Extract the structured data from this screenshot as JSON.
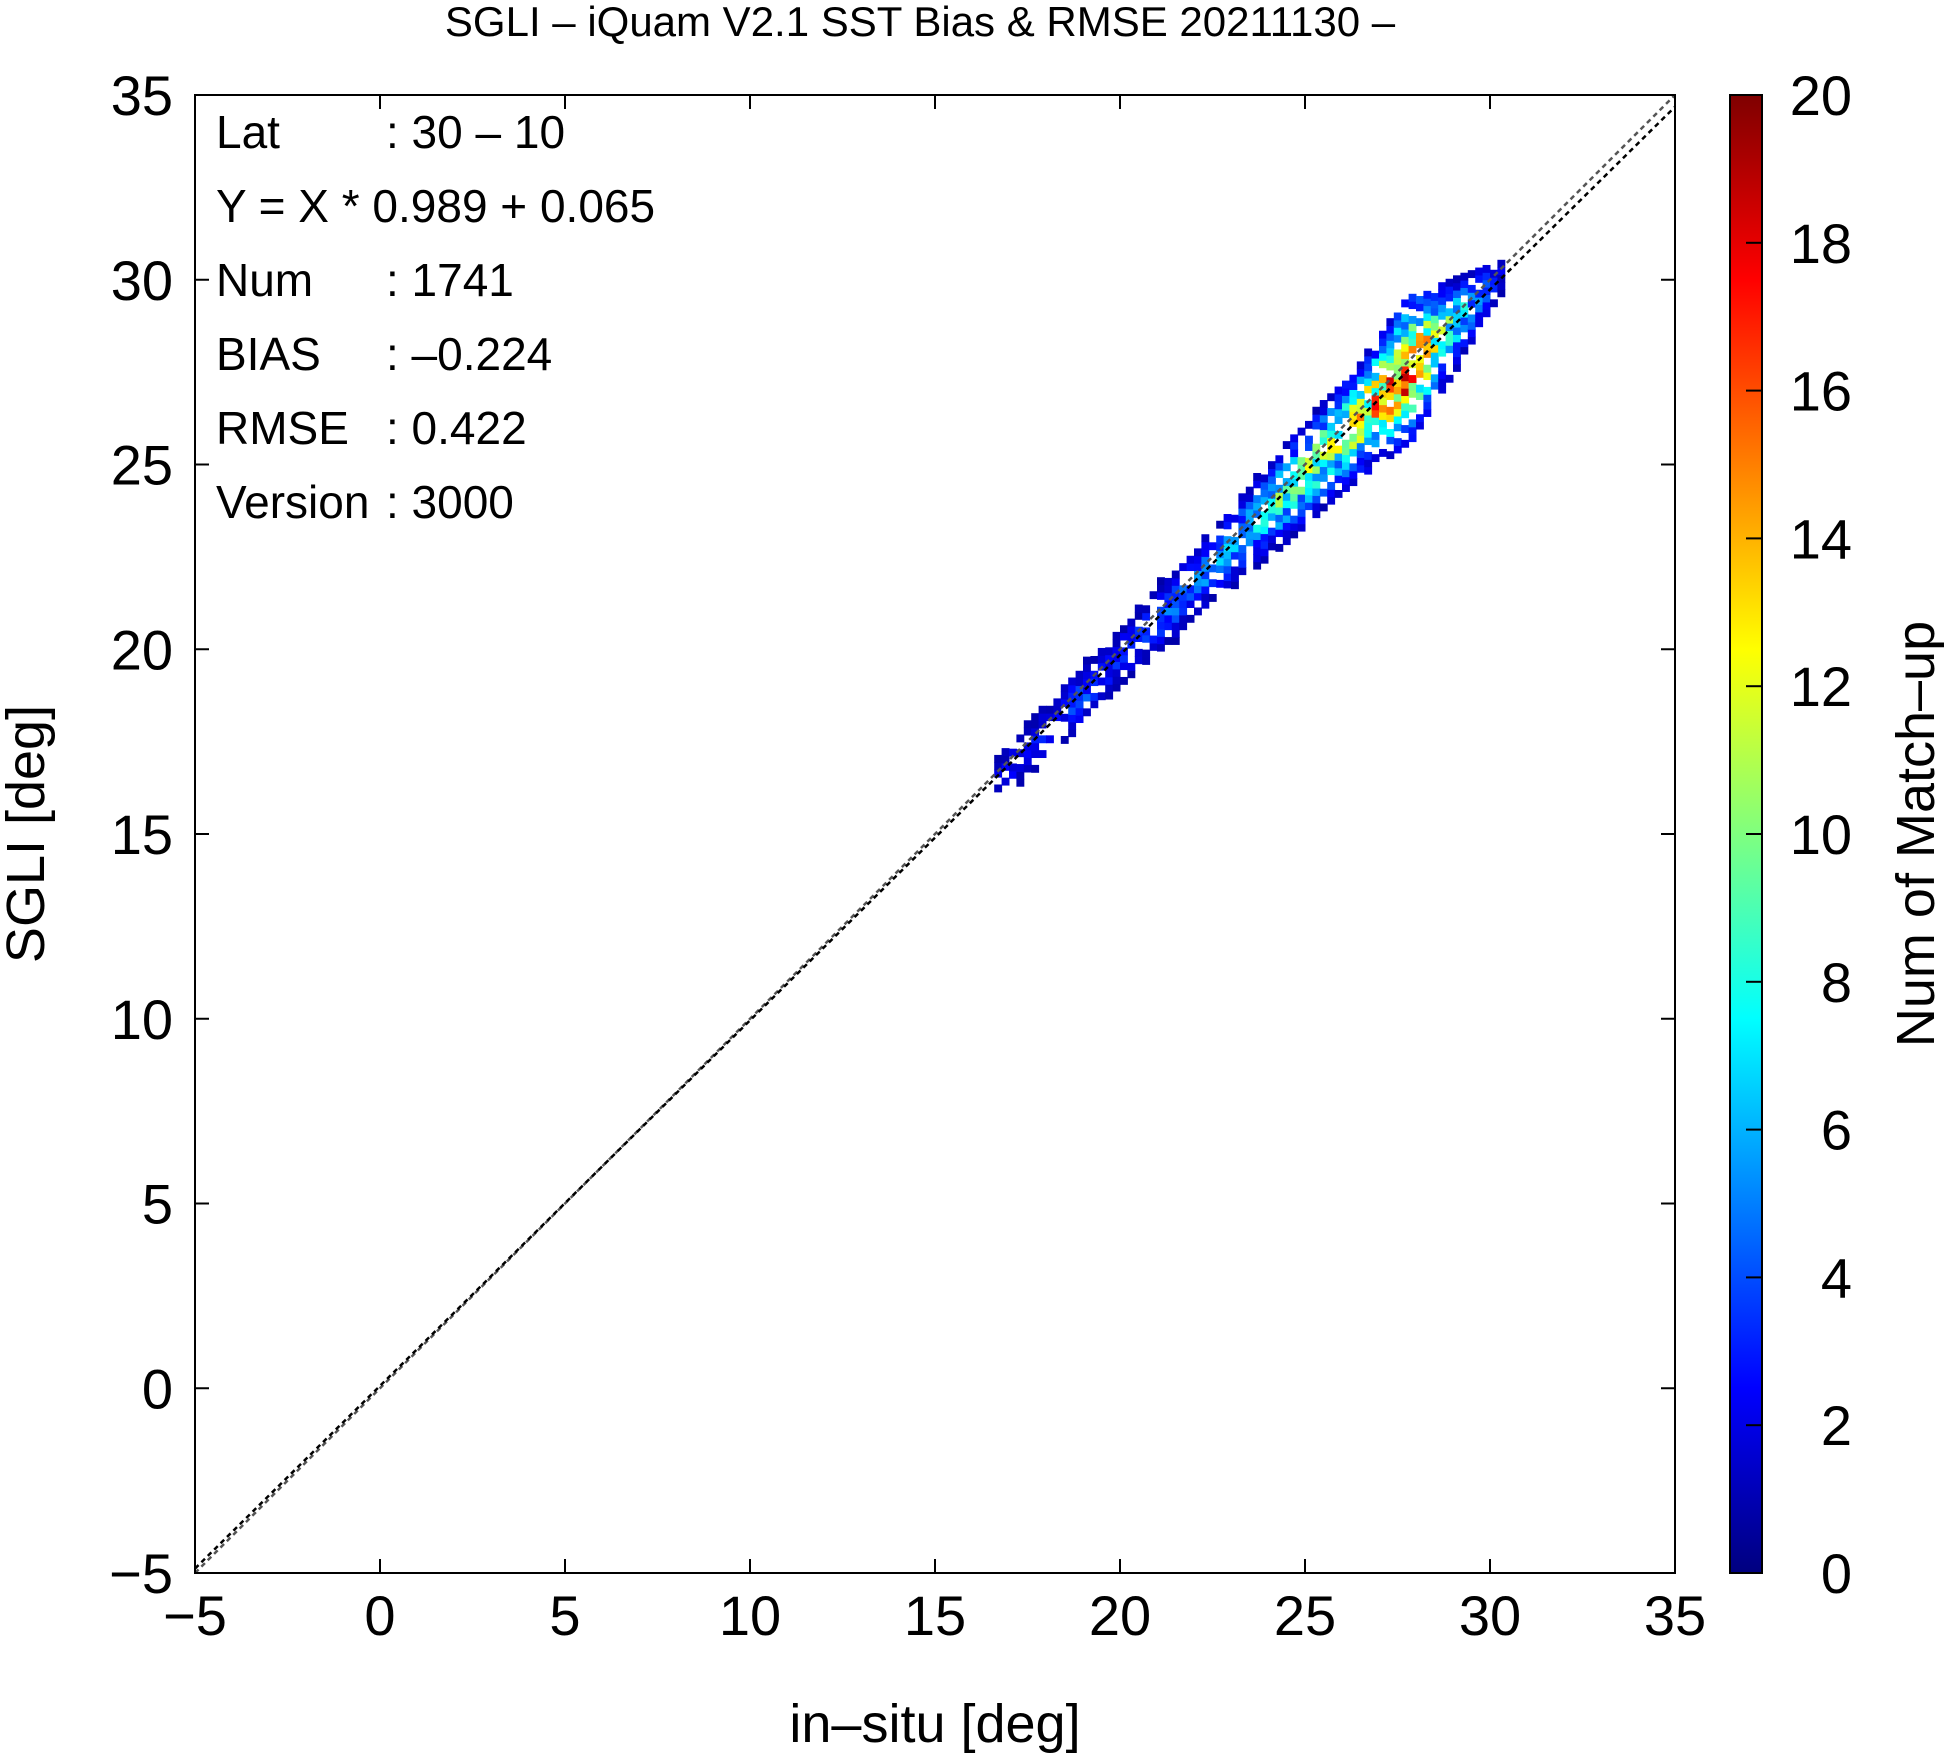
{
  "chart_data": {
    "type": "heatmap",
    "title": "SGLI – iQuam V2.1 SST Bias & RMSE 20211130 –",
    "xlabel": "in–situ [deg]",
    "ylabel": "SGLI [deg]",
    "colorbar_label": "Num of Match–up",
    "xlim": [
      -5,
      35
    ],
    "ylim": [
      -5,
      35
    ],
    "x_ticks": [
      "−5",
      "0",
      "5",
      "10",
      "15",
      "20",
      "25",
      "30",
      "35"
    ],
    "y_ticks": [
      "−5",
      "0",
      "5",
      "10",
      "15",
      "20",
      "25",
      "30",
      "35"
    ],
    "colorbar_range": [
      0,
      20
    ],
    "colorbar_ticks": [
      "0",
      "2",
      "4",
      "6",
      "8",
      "10",
      "12",
      "14",
      "16",
      "18",
      "20"
    ],
    "colormap": [
      "#00007f",
      "#0000ff",
      "#007fff",
      "#00ffff",
      "#7fff7f",
      "#ffff00",
      "#ff7f00",
      "#ff0000",
      "#7f0000"
    ],
    "reference_lines": [
      {
        "type": "1:1",
        "slope": 1.0,
        "intercept": 0.0,
        "color": "#555555"
      },
      {
        "type": "regression",
        "slope": 0.989,
        "intercept": 0.065,
        "color": "#000000"
      }
    ],
    "stats": [
      {
        "label": "Lat",
        "value": ": 30 – 10"
      },
      {
        "label": "Y = X * 0.989 + 0.065",
        "value": ""
      },
      {
        "label": "Num",
        "value": ": 1741"
      },
      {
        "label": "BIAS",
        "value": ": –0.224"
      },
      {
        "label": "RMSE",
        "value": ": 0.422"
      },
      {
        "label": "Version",
        "value": ": 3000"
      }
    ],
    "density_band": {
      "bin_size": 0.2,
      "center_offset": -0.22,
      "points": [
        {
          "x": 16.6,
          "n": 2
        },
        {
          "x": 17.5,
          "n": 3
        },
        {
          "x": 18.2,
          "n": 3
        },
        {
          "x": 19.0,
          "n": 4
        },
        {
          "x": 19.8,
          "n": 3
        },
        {
          "x": 20.5,
          "n": 4
        },
        {
          "x": 21.2,
          "n": 5
        },
        {
          "x": 22.0,
          "n": 5
        },
        {
          "x": 22.8,
          "n": 6
        },
        {
          "x": 23.5,
          "n": 7
        },
        {
          "x": 24.2,
          "n": 9
        },
        {
          "x": 25.0,
          "n": 10
        },
        {
          "x": 25.8,
          "n": 11
        },
        {
          "x": 26.5,
          "n": 13
        },
        {
          "x": 27.2,
          "n": 16
        },
        {
          "x": 27.8,
          "n": 18
        },
        {
          "x": 28.4,
          "n": 12
        },
        {
          "x": 29.0,
          "n": 8
        },
        {
          "x": 29.6,
          "n": 5
        },
        {
          "x": 30.2,
          "n": 2
        }
      ]
    }
  }
}
